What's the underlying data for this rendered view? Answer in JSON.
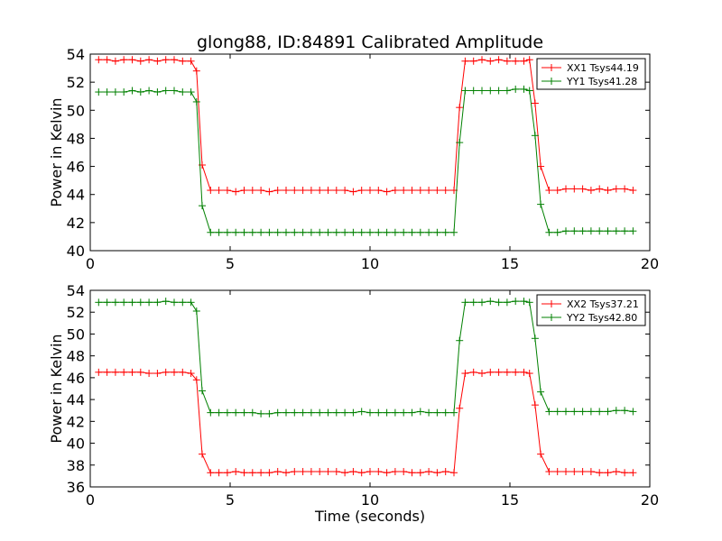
{
  "figure": {
    "title": "glong88, ID:84891 Calibrated Amplitude",
    "xlabel": "Time (seconds)"
  },
  "chart_data": [
    {
      "type": "line",
      "title": "glong88, ID:84891 Calibrated Amplitude",
      "xlabel": "",
      "ylabel": "Power in Kelvin",
      "xlim": [
        0,
        20
      ],
      "ylim": [
        40,
        54
      ],
      "xticks": [
        "0",
        "5",
        "10",
        "15",
        "20"
      ],
      "yticks": [
        "40",
        "42",
        "44",
        "46",
        "48",
        "50",
        "52",
        "54"
      ],
      "legend_position": "top-right",
      "grid": false,
      "x": [
        0.3,
        0.6,
        0.9,
        1.2,
        1.5,
        1.8,
        2.1,
        2.4,
        2.7,
        3.0,
        3.3,
        3.6,
        3.8,
        4.0,
        4.3,
        4.6,
        4.9,
        5.2,
        5.5,
        5.8,
        6.1,
        6.4,
        6.7,
        7.0,
        7.3,
        7.6,
        7.9,
        8.2,
        8.5,
        8.8,
        9.1,
        9.4,
        9.7,
        10.0,
        10.3,
        10.6,
        10.9,
        11.2,
        11.5,
        11.8,
        12.1,
        12.4,
        12.7,
        13.0,
        13.2,
        13.4,
        13.7,
        14.0,
        14.3,
        14.6,
        14.9,
        15.2,
        15.5,
        15.7,
        15.9,
        16.1,
        16.4,
        16.7,
        17.0,
        17.3,
        17.6,
        17.9,
        18.2,
        18.5,
        18.8,
        19.1,
        19.4
      ],
      "series": [
        {
          "name": "XX1 Tsys44.19",
          "color": "#ff0000",
          "values": [
            53.6,
            53.6,
            53.5,
            53.6,
            53.6,
            53.5,
            53.6,
            53.5,
            53.6,
            53.6,
            53.5,
            53.5,
            52.8,
            46.1,
            44.3,
            44.3,
            44.3,
            44.2,
            44.3,
            44.3,
            44.3,
            44.2,
            44.3,
            44.3,
            44.3,
            44.3,
            44.3,
            44.3,
            44.3,
            44.3,
            44.3,
            44.2,
            44.3,
            44.3,
            44.3,
            44.2,
            44.3,
            44.3,
            44.3,
            44.3,
            44.3,
            44.3,
            44.3,
            44.3,
            50.2,
            53.5,
            53.5,
            53.6,
            53.5,
            53.6,
            53.5,
            53.5,
            53.5,
            53.6,
            50.5,
            46.0,
            44.3,
            44.3,
            44.4,
            44.4,
            44.4,
            44.3,
            44.4,
            44.3,
            44.4,
            44.4,
            44.3
          ]
        },
        {
          "name": "YY1 Tsys41.28",
          "color": "#008000",
          "values": [
            51.3,
            51.3,
            51.3,
            51.3,
            51.4,
            51.3,
            51.4,
            51.3,
            51.4,
            51.4,
            51.3,
            51.3,
            50.6,
            43.2,
            41.3,
            41.3,
            41.3,
            41.3,
            41.3,
            41.3,
            41.3,
            41.3,
            41.3,
            41.3,
            41.3,
            41.3,
            41.3,
            41.3,
            41.3,
            41.3,
            41.3,
            41.3,
            41.3,
            41.3,
            41.3,
            41.3,
            41.3,
            41.3,
            41.3,
            41.3,
            41.3,
            41.3,
            41.3,
            41.3,
            47.7,
            51.4,
            51.4,
            51.4,
            51.4,
            51.4,
            51.4,
            51.5,
            51.5,
            51.4,
            48.2,
            43.3,
            41.3,
            41.3,
            41.4,
            41.4,
            41.4,
            41.4,
            41.4,
            41.4,
            41.4,
            41.4,
            41.4
          ]
        }
      ]
    },
    {
      "type": "line",
      "title": "",
      "xlabel": "Time (seconds)",
      "ylabel": "Power in Kelvin",
      "xlim": [
        0,
        20
      ],
      "ylim": [
        36,
        54
      ],
      "xticks": [
        "0",
        "5",
        "10",
        "15",
        "20"
      ],
      "yticks": [
        "36",
        "38",
        "40",
        "42",
        "44",
        "46",
        "48",
        "50",
        "52",
        "54"
      ],
      "legend_position": "top-right",
      "grid": false,
      "x": [
        0.3,
        0.6,
        0.9,
        1.2,
        1.5,
        1.8,
        2.1,
        2.4,
        2.7,
        3.0,
        3.3,
        3.6,
        3.8,
        4.0,
        4.3,
        4.6,
        4.9,
        5.2,
        5.5,
        5.8,
        6.1,
        6.4,
        6.7,
        7.0,
        7.3,
        7.6,
        7.9,
        8.2,
        8.5,
        8.8,
        9.1,
        9.4,
        9.7,
        10.0,
        10.3,
        10.6,
        10.9,
        11.2,
        11.5,
        11.8,
        12.1,
        12.4,
        12.7,
        13.0,
        13.2,
        13.4,
        13.7,
        14.0,
        14.3,
        14.6,
        14.9,
        15.2,
        15.5,
        15.7,
        15.9,
        16.1,
        16.4,
        16.7,
        17.0,
        17.3,
        17.6,
        17.9,
        18.2,
        18.5,
        18.8,
        19.1,
        19.4
      ],
      "series": [
        {
          "name": "XX2 Tsys37.21",
          "color": "#ff0000",
          "values": [
            46.5,
            46.5,
            46.5,
            46.5,
            46.5,
            46.5,
            46.4,
            46.4,
            46.5,
            46.5,
            46.5,
            46.4,
            45.8,
            39.0,
            37.3,
            37.3,
            37.3,
            37.4,
            37.3,
            37.3,
            37.3,
            37.3,
            37.4,
            37.3,
            37.4,
            37.4,
            37.4,
            37.4,
            37.4,
            37.4,
            37.3,
            37.4,
            37.3,
            37.4,
            37.4,
            37.3,
            37.4,
            37.4,
            37.3,
            37.3,
            37.4,
            37.3,
            37.4,
            37.3,
            43.2,
            46.4,
            46.5,
            46.4,
            46.5,
            46.5,
            46.5,
            46.5,
            46.5,
            46.4,
            43.5,
            39.0,
            37.4,
            37.4,
            37.4,
            37.4,
            37.4,
            37.4,
            37.3,
            37.3,
            37.4,
            37.3,
            37.3
          ]
        },
        {
          "name": "YY2 Tsys42.80",
          "color": "#008000",
          "values": [
            52.9,
            52.9,
            52.9,
            52.9,
            52.9,
            52.9,
            52.9,
            52.9,
            53.0,
            52.9,
            52.9,
            52.9,
            52.1,
            44.8,
            42.8,
            42.8,
            42.8,
            42.8,
            42.8,
            42.8,
            42.7,
            42.7,
            42.8,
            42.8,
            42.8,
            42.8,
            42.8,
            42.8,
            42.8,
            42.8,
            42.8,
            42.8,
            42.9,
            42.8,
            42.8,
            42.8,
            42.8,
            42.8,
            42.8,
            42.9,
            42.8,
            42.8,
            42.8,
            42.8,
            49.4,
            52.9,
            52.9,
            52.9,
            53.0,
            52.9,
            52.9,
            53.0,
            53.0,
            52.9,
            49.6,
            44.7,
            42.9,
            42.9,
            42.9,
            42.9,
            42.9,
            42.9,
            42.9,
            42.9,
            43.0,
            43.0,
            42.9
          ]
        }
      ]
    }
  ]
}
